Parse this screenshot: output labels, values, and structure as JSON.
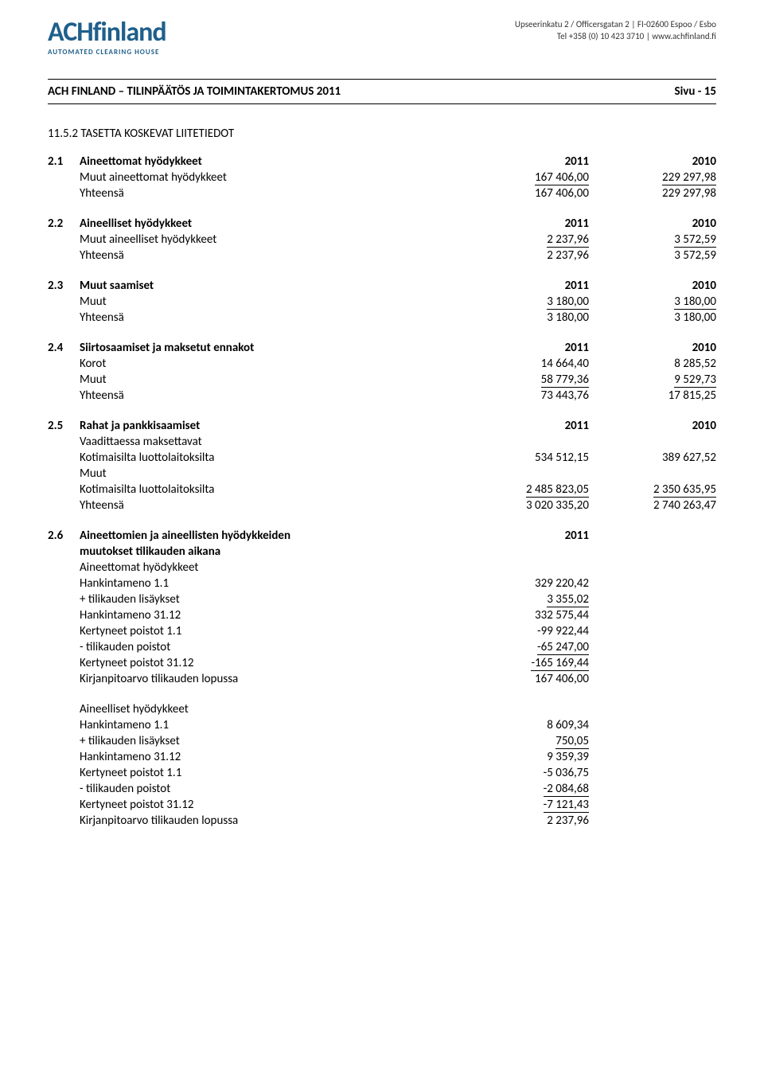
{
  "header": {
    "logo_main_a": "ACH",
    "logo_main_b": "finland",
    "logo_sub": "AUTOMATED CLEARING HOUSE",
    "contact_line1": "Upseerinkatu 2 / Officersgatan 2 | FI-02600 Espoo / Esbo",
    "contact_line2": "Tel +358 (0) 10 423 3710 | www.achfinland.fi"
  },
  "bar": {
    "title": "ACH FINLAND – TILINPÄÄTÖS JA TOIMINTAKERTOMUS 2011",
    "page": "Sivu - 15"
  },
  "section_title": "11.5.2 TASETTA KOSKEVAT LIITETIEDOT",
  "s1": {
    "num": "2.1",
    "title": "Aineettomat hyödykkeet",
    "h1": "2011",
    "h2": "2010",
    "r1_label": "Muut aineettomat hyödykkeet",
    "r1_v1": "167 406,00",
    "r1_v2": "229 297,98",
    "r2_label": "Yhteensä",
    "r2_v1": "167 406,00",
    "r2_v2": "229 297,98"
  },
  "s2": {
    "num": "2.2",
    "title": "Aineelliset hyödykkeet",
    "h1": "2011",
    "h2": "2010",
    "r1_label": "Muut aineelliset hyödykkeet",
    "r1_v1": "2 237,96",
    "r1_v2": "3 572,59",
    "r2_label": "Yhteensä",
    "r2_v1": "2 237,96",
    "r2_v2": "3 572,59"
  },
  "s3": {
    "num": "2.3",
    "title": "Muut saamiset",
    "h1": "2011",
    "h2": "2010",
    "r1_label": "Muut",
    "r1_v1": "3 180,00",
    "r1_v2": "3 180,00",
    "r2_label": "Yhteensä",
    "r2_v1": "3 180,00",
    "r2_v2": "3 180,00"
  },
  "s4": {
    "num": "2.4",
    "title": "Siirtosaamiset ja maksetut ennakot",
    "h1": "2011",
    "h2": "2010",
    "r1_label": "Korot",
    "r1_v1": "14 664,40",
    "r1_v2": "8 285,52",
    "r2_label": "Muut",
    "r2_v1": "58 779,36",
    "r2_v2": "9 529,73",
    "r3_label": "Yhteensä",
    "r3_v1": "73 443,76",
    "r3_v2": "17 815,25"
  },
  "s5": {
    "num": "2.5",
    "title": "Rahat ja pankkisaamiset",
    "h1": "2011",
    "h2": "2010",
    "r1_label": "Vaadittaessa maksettavat",
    "r2_label": "Kotimaisilta luottolaitoksilta",
    "r2_v1": "534 512,15",
    "r2_v2": "389 627,52",
    "r3_label": "Muut",
    "r4_label": "Kotimaisilta luottolaitoksilta",
    "r4_v1": "2 485 823,05",
    "r4_v2": "2 350 635,95",
    "r5_label": "Yhteensä",
    "r5_v1": "3 020 335,20",
    "r5_v2": "2 740 263,47"
  },
  "s6": {
    "num": "2.6",
    "title1": "Aineettomien ja aineellisten hyödykkeiden",
    "title2": "muutokset tilikauden aikana",
    "h1": "2011",
    "a_label": "Aineettomat hyödykkeet",
    "a_r1_label": "Hankintameno 1.1",
    "a_r1_v": "329 220,42",
    "a_r2_label": "+ tilikauden lisäykset",
    "a_r2_v": "3 355,02",
    "a_r3_label": "Hankintameno 31.12",
    "a_r3_v": "332 575,44",
    "a_r4_label": "Kertyneet poistot 1.1",
    "a_r4_v": "-99 922,44",
    "a_r5_label": "- tilikauden poistot",
    "a_r5_v": "-65 247,00",
    "a_r6_label": "Kertyneet poistot 31.12",
    "a_r6_v": "-165 169,44",
    "a_r7_label": "Kirjanpitoarvo tilikauden lopussa",
    "a_r7_v": "167 406,00",
    "b_label": "Aineelliset hyödykkeet",
    "b_r1_label": "Hankintameno 1.1",
    "b_r1_v": "8 609,34",
    "b_r2_label": "+ tilikauden lisäykset",
    "b_r2_v": "750,05",
    "b_r3_label": "Hankintameno 31.12",
    "b_r3_v": "9 359,39",
    "b_r4_label": "Kertyneet poistot 1.1",
    "b_r4_v": "-5 036,75",
    "b_r5_label": "- tilikauden poistot",
    "b_r5_v": "-2 084,68",
    "b_r6_label": "Kertyneet poistot 31.12",
    "b_r6_v": "-7 121,43",
    "b_r7_label": "Kirjanpitoarvo tilikauden lopussa",
    "b_r7_v": "2 237,96"
  }
}
